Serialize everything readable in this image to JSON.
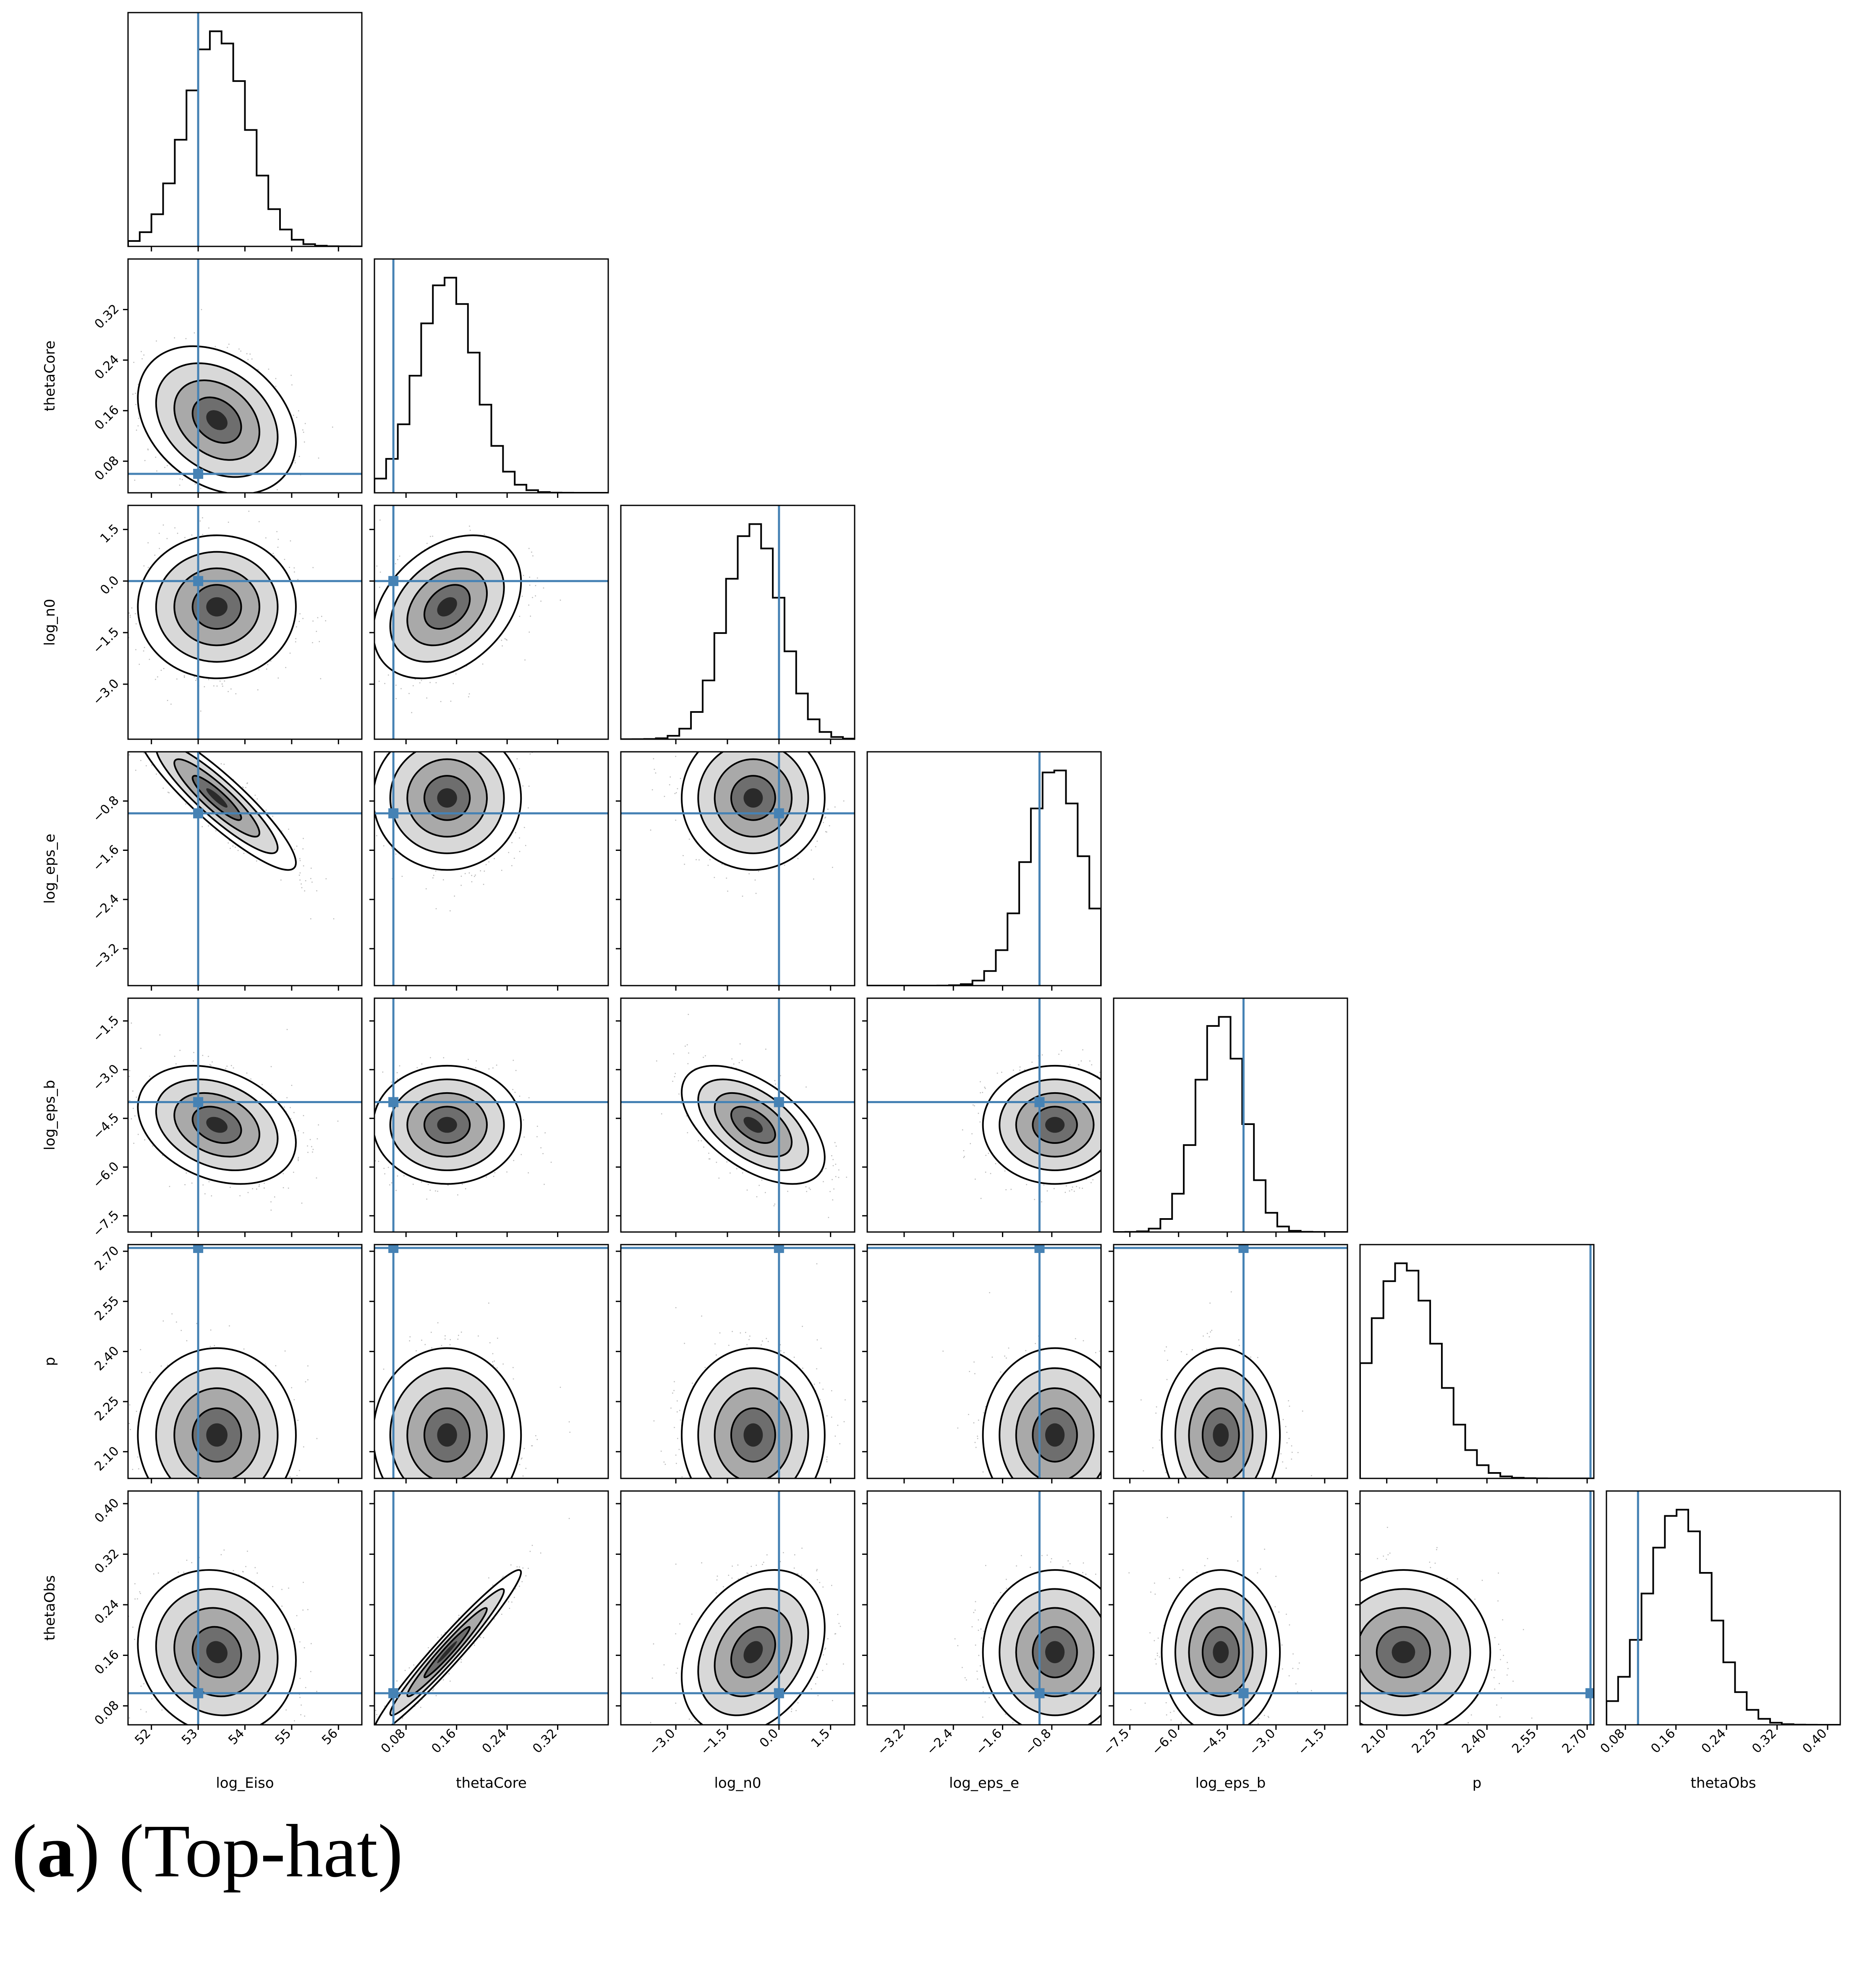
{
  "chart_data": {
    "type": "corner",
    "parameters": [
      {
        "name": "log_Eiso",
        "truth": 53.0,
        "mean": 53.4,
        "sd": 0.65,
        "range": [
          51.5,
          56.5
        ],
        "ticks": [
          52,
          53,
          54,
          55,
          56
        ],
        "tick_labels": [
          "52",
          "53",
          "54",
          "55",
          "56"
        ]
      },
      {
        "name": "thetaCore",
        "truth": 0.06,
        "mean": 0.145,
        "sd": 0.045,
        "range": [
          0.03,
          0.4
        ],
        "ticks": [
          0.08,
          0.16,
          0.24,
          0.32
        ],
        "tick_labels": [
          "0.08",
          "0.16",
          "0.24",
          "0.32"
        ]
      },
      {
        "name": "log_n0",
        "truth": 0.0,
        "mean": -0.75,
        "sd": 0.8,
        "range": [
          -4.6,
          2.2
        ],
        "ticks": [
          -3.0,
          -1.5,
          0.0,
          1.5
        ],
        "tick_labels": [
          "−3.0",
          "−1.5",
          "0.0",
          "1.5"
        ]
      },
      {
        "name": "log_eps_e",
        "truth": -1.0,
        "mean": -0.75,
        "sd": 0.45,
        "range": [
          -3.8,
          0.0
        ],
        "ticks": [
          -3.2,
          -2.4,
          -1.6,
          -0.8
        ],
        "tick_labels": [
          "−3.2",
          "−2.4",
          "−1.6",
          "−0.8"
        ]
      },
      {
        "name": "log_eps_b",
        "truth": -4.0,
        "mean": -4.7,
        "sd": 0.7,
        "range": [
          -8.0,
          -0.8
        ],
        "ticks": [
          -7.5,
          -6.0,
          -4.5,
          -3.0,
          -1.5
        ],
        "tick_labels": [
          "−7.5",
          "−6.0",
          "−4.5",
          "−3.0",
          "−1.5"
        ]
      },
      {
        "name": "p",
        "truth": 2.71,
        "mean": 2.15,
        "sd": 0.1,
        "range": [
          2.02,
          2.72
        ],
        "ticks": [
          2.1,
          2.25,
          2.4,
          2.55,
          2.7
        ],
        "tick_labels": [
          "2.10",
          "2.25",
          "2.40",
          "2.55",
          "2.70"
        ]
      },
      {
        "name": "thetaObs",
        "truth": 0.1,
        "mean": 0.165,
        "sd": 0.05,
        "range": [
          0.05,
          0.42
        ],
        "ticks": [
          0.08,
          0.16,
          0.24,
          0.32,
          0.4
        ],
        "tick_labels": [
          "0.08",
          "0.16",
          "0.24",
          "0.32",
          "0.40"
        ]
      }
    ],
    "correlations": [
      {
        "i": 1,
        "j": 0,
        "r": -0.3
      },
      {
        "i": 2,
        "j": 0,
        "r": 0.0
      },
      {
        "i": 2,
        "j": 1,
        "r": 0.35
      },
      {
        "i": 3,
        "j": 0,
        "r": -0.9
      },
      {
        "i": 3,
        "j": 1,
        "r": 0.0
      },
      {
        "i": 3,
        "j": 2,
        "r": 0.0
      },
      {
        "i": 4,
        "j": 0,
        "r": -0.3
      },
      {
        "i": 4,
        "j": 1,
        "r": 0.0
      },
      {
        "i": 4,
        "j": 2,
        "r": -0.55
      },
      {
        "i": 4,
        "j": 3,
        "r": 0.0
      },
      {
        "i": 5,
        "j": 0,
        "r": 0.0
      },
      {
        "i": 5,
        "j": 1,
        "r": 0.0
      },
      {
        "i": 5,
        "j": 2,
        "r": 0.0
      },
      {
        "i": 5,
        "j": 3,
        "r": 0.0
      },
      {
        "i": 5,
        "j": 4,
        "r": 0.0
      },
      {
        "i": 6,
        "j": 0,
        "r": -0.1
      },
      {
        "i": 6,
        "j": 1,
        "r": 0.97
      },
      {
        "i": 6,
        "j": 2,
        "r": 0.3
      },
      {
        "i": 6,
        "j": 3,
        "r": 0.0
      },
      {
        "i": 6,
        "j": 4,
        "r": 0.0
      },
      {
        "i": 6,
        "j": 5,
        "r": 0.0
      }
    ],
    "truth_color": "#4682b4",
    "contour_color": "#000000",
    "hist_color": "#000000",
    "grid": false
  },
  "caption": {
    "label": "a",
    "text": "(Top-hat)"
  }
}
